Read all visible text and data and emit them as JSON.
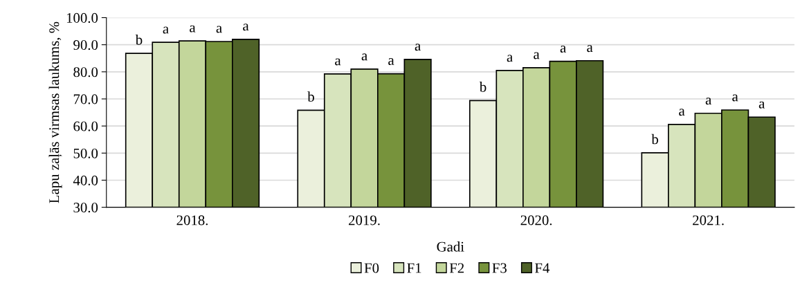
{
  "chart_data": {
    "type": "bar",
    "xlabel": "Gadi",
    "ylabel": "Lapu zaļās virmsas laukums, %",
    "categories": [
      "2018.",
      "2019.",
      "2020.",
      "2021."
    ],
    "series": [
      {
        "name": "F0",
        "color": "#ebf0dc",
        "values": [
          86.8,
          65.8,
          69.4,
          50.1
        ],
        "value_labels": [
          "b",
          "b",
          "b",
          "b"
        ]
      },
      {
        "name": "F1",
        "color": "#d7e4bd",
        "values": [
          90.9,
          79.2,
          80.5,
          60.6
        ],
        "value_labels": [
          "a",
          "a",
          "a",
          "a"
        ]
      },
      {
        "name": "F2",
        "color": "#c3d69b",
        "values": [
          91.4,
          81.0,
          81.5,
          64.7
        ],
        "value_labels": [
          "a",
          "a",
          "a",
          "a"
        ]
      },
      {
        "name": "F3",
        "color": "#77933c",
        "values": [
          91.2,
          79.3,
          83.9,
          65.9
        ],
        "value_labels": [
          "a",
          "a",
          "a",
          "a"
        ]
      },
      {
        "name": "F4",
        "color": "#4f6228",
        "values": [
          92.0,
          84.6,
          84.1,
          63.3
        ],
        "value_labels": [
          "a",
          "a",
          "a",
          "a"
        ]
      }
    ],
    "ylim": [
      30,
      100
    ],
    "yticks": [
      {
        "value": 30,
        "label": "30.0"
      },
      {
        "value": 40,
        "label": "40.0"
      },
      {
        "value": 50,
        "label": "50.0"
      },
      {
        "value": 60,
        "label": "60.0"
      },
      {
        "value": 70,
        "label": "70.0"
      },
      {
        "value": 80,
        "label": "80.0"
      },
      {
        "value": 90,
        "label": "90.0"
      },
      {
        "value": 100,
        "label": "100.0"
      }
    ],
    "grid": "y",
    "legend": "bottom"
  }
}
